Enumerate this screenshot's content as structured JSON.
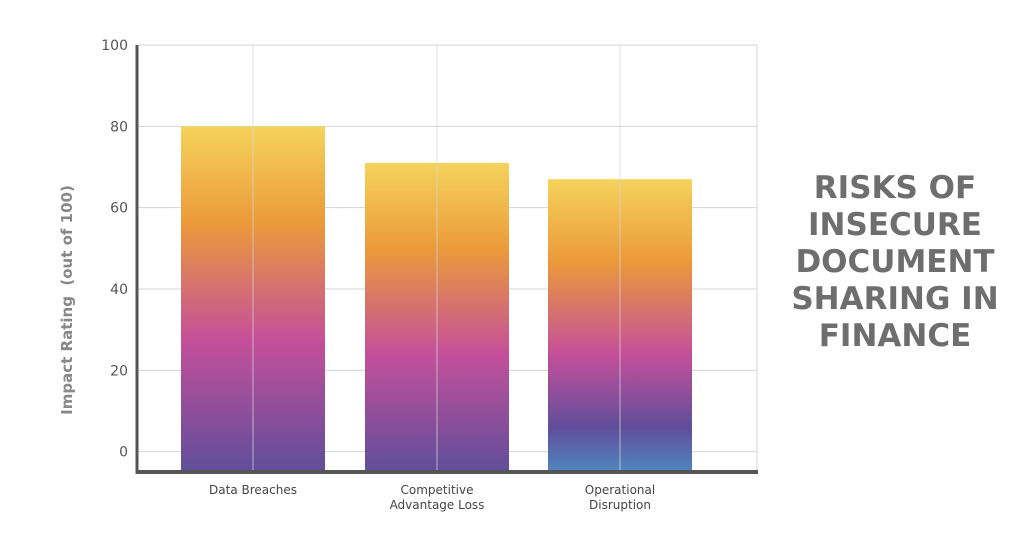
{
  "side_title": {
    "lines": [
      "RISKS OF",
      "INSECURE",
      "DOCUMENT",
      "SHARING IN",
      "FINANCE"
    ]
  },
  "colors": {
    "grid": "#d4d4d4",
    "axis": "#555555",
    "bar_top": "#f5d35c",
    "bar_upper": "#eb9a3a",
    "bar_middle": "#c44f9a",
    "bar_bottom": "#5f4e9a",
    "bar_bottom_accent": "#4f86bf"
  },
  "chart_data": {
    "type": "bar",
    "title": "RISKS OF INSECURE DOCUMENT SHARING IN FINANCE",
    "ylabel": "Impact Rating  (out of 100)",
    "xlabel": "",
    "categories": [
      {
        "line1": "Data Breaches",
        "line2": ""
      },
      {
        "line1": "Competitive",
        "line2": "Advantage Loss"
      },
      {
        "line1": "Operational",
        "line2": "Disruption"
      }
    ],
    "values": [
      80,
      71,
      67
    ],
    "ylim": [
      -5,
      100
    ],
    "yticks": [
      0,
      20,
      40,
      60,
      80,
      100
    ],
    "grid": true
  }
}
